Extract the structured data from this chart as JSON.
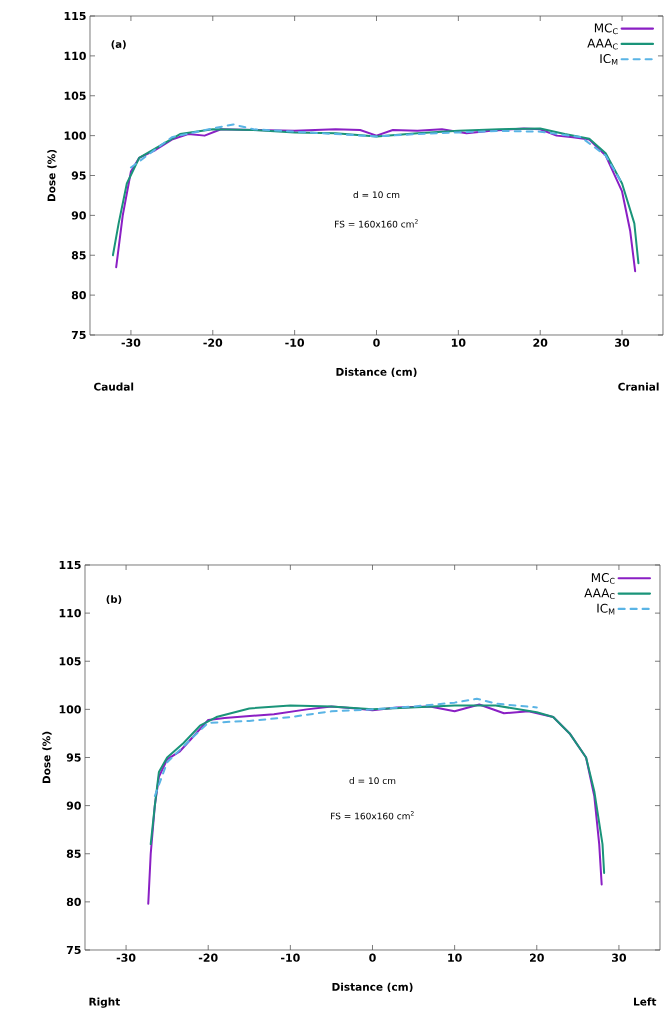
{
  "chart_data": [
    {
      "type": "line",
      "xlabel": "Distance (cm)",
      "ylabel": "Dose (%)",
      "xlim": [
        -35,
        35
      ],
      "ylim": [
        75,
        115
      ],
      "xticks": [
        -30,
        -20,
        -10,
        0,
        10,
        20,
        30
      ],
      "yticks": [
        75,
        80,
        85,
        90,
        95,
        100,
        105,
        110,
        115
      ],
      "legend": "top right",
      "grid": false,
      "annotations": [
        "(a)",
        "d = 10 cm",
        "FS = 160x160 cm$^{2}$",
        "Caudal",
        "Cranial"
      ],
      "series": [
        {
          "name": "MC$_{C}$",
          "color": "#8a1fc4",
          "line_style": "solid",
          "x": [
            -31.8,
            -31,
            -30,
            -29,
            -27,
            -25,
            -23,
            -21,
            -19,
            -15,
            -10,
            -5,
            -2,
            0,
            2,
            5,
            8,
            11,
            14,
            18,
            20,
            22,
            24,
            26,
            28,
            30,
            31,
            31.6
          ],
          "values": [
            83.5,
            90,
            95.5,
            97.2,
            98.2,
            99.5,
            100.2,
            100.0,
            100.8,
            100.7,
            100.6,
            100.8,
            100.7,
            100.0,
            100.7,
            100.6,
            100.8,
            100.3,
            100.6,
            100.9,
            100.8,
            100.0,
            99.8,
            99.5,
            97.5,
            93,
            88,
            83
          ]
        },
        {
          "name": "AAA$_{C}$",
          "color": "#1a9479",
          "line_style": "solid",
          "x": [
            -32.2,
            -31.5,
            -30.5,
            -29,
            -26,
            -24,
            -20,
            -15,
            -10,
            -5,
            0,
            5,
            10,
            15,
            20,
            23,
            26,
            28,
            30,
            31.5,
            32
          ],
          "values": [
            85,
            89,
            94,
            97.2,
            99,
            100.2,
            100.8,
            100.7,
            100.4,
            100.3,
            99.9,
            100.3,
            100.6,
            100.8,
            100.9,
            100.2,
            99.6,
            97.8,
            94,
            89,
            84
          ]
        },
        {
          "name": "IC$_{M}$",
          "color": "#5ab4e5",
          "line_style": "dashed",
          "x": [
            -30,
            -25,
            -20,
            -17.5,
            -15,
            -10,
            -5,
            0,
            5,
            10,
            15,
            20,
            25,
            28,
            30
          ],
          "values": [
            96,
            99.8,
            100.9,
            101.4,
            100.8,
            100.5,
            100.2,
            99.9,
            100.2,
            100.4,
            100.6,
            100.5,
            99.8,
            97.5,
            94
          ]
        }
      ]
    },
    {
      "type": "line",
      "xlabel": "Distance (cm)",
      "ylabel": "Dose (%)",
      "xlim": [
        -35,
        35
      ],
      "ylim": [
        75,
        115
      ],
      "xticks": [
        -30,
        -20,
        -10,
        0,
        10,
        20,
        30
      ],
      "yticks": [
        75,
        80,
        85,
        90,
        95,
        100,
        105,
        110,
        115
      ],
      "legend": "top right",
      "grid": false,
      "annotations": [
        "(b)",
        "d = 10 cm",
        "FS = 160x160 cm$^{2}$",
        "Right",
        "Left"
      ],
      "series": [
        {
          "name": "MC$_{C}$",
          "color": "#8a1fc4",
          "line_style": "solid",
          "x": [
            -27.3,
            -27,
            -26.5,
            -26,
            -25,
            -23.5,
            -22,
            -20,
            -18,
            -15,
            -12,
            -8,
            -5,
            -2,
            0,
            3,
            7,
            10,
            13,
            16,
            19,
            22,
            24,
            26,
            27,
            27.6,
            27.9
          ],
          "values": [
            79.8,
            85,
            90,
            93,
            94.8,
            95.6,
            97,
            98.9,
            99.1,
            99.3,
            99.5,
            100,
            100.3,
            100.1,
            99.9,
            100.2,
            100.3,
            99.8,
            100.5,
            99.6,
            99.8,
            99.2,
            97.5,
            95,
            91,
            86,
            81.8
          ]
        },
        {
          "name": "AAA$_{C}$",
          "color": "#1a9479",
          "line_style": "solid",
          "x": [
            -27,
            -26.5,
            -26,
            -25,
            -23,
            -21,
            -19,
            -15,
            -10,
            -5,
            0,
            5,
            10,
            15,
            20,
            22,
            24,
            26,
            27,
            28,
            28.2
          ],
          "values": [
            86,
            90,
            93.5,
            95,
            96.5,
            98.3,
            99.2,
            100.1,
            100.4,
            100.3,
            100,
            100.2,
            100.4,
            100.4,
            99.7,
            99.2,
            97.5,
            95,
            91.5,
            86,
            83
          ]
        },
        {
          "name": "IC$_{M}$",
          "color": "#5ab4e5",
          "line_style": "dashed",
          "x": [
            -26.5,
            -25,
            -22,
            -20,
            -15,
            -10,
            -5,
            0,
            5,
            10,
            12.7,
            15,
            20
          ],
          "values": [
            91,
            94.5,
            97,
            98.6,
            98.8,
            99.2,
            99.8,
            100,
            100.3,
            100.7,
            101.1,
            100.6,
            100.2
          ]
        }
      ]
    }
  ]
}
